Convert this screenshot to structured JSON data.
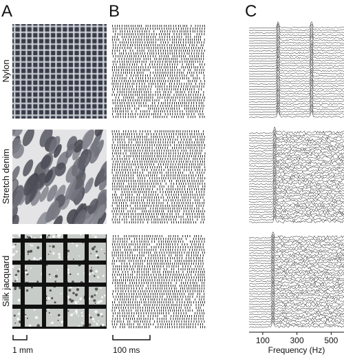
{
  "panel_labels": [
    "A",
    "B",
    "C"
  ],
  "rows": [
    "Nylon",
    "Stretch denim",
    "Silk jacquard"
  ],
  "scale_bars": {
    "spatial": "1 mm",
    "temporal": "100 ms"
  },
  "frequency_axis": {
    "label": "Frequency (Hz)",
    "xlim": [
      20,
      575
    ],
    "xticks": [
      100,
      300,
      500
    ]
  }
}
